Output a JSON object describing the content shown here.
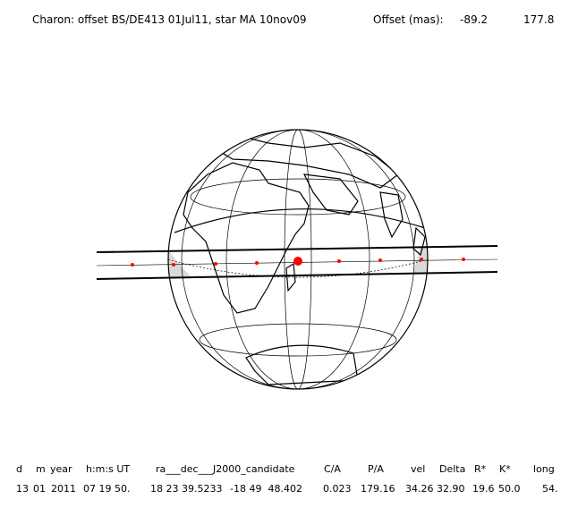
{
  "title": "Charon: offset BS/DE413 01Jul11, star MA 10nov09",
  "offset_label": "Offset (mas):",
  "offset": [
    "-89.2",
    "177.8"
  ],
  "table": {
    "header": [
      "d",
      "m",
      "year",
      "h:m:s UT",
      "ra___dec___J2000_candidate",
      "C/A",
      "P/A",
      "vel",
      "Delta",
      "R*",
      "K*",
      "long"
    ],
    "row": [
      "13",
      "01",
      "2011",
      "07 19 50.",
      "18 23 39.5233",
      "-18 49  48.402",
      "0.023",
      "179.16",
      "34.26",
      "32.90",
      "19.6",
      "50.0",
      "54."
    ]
  }
}
